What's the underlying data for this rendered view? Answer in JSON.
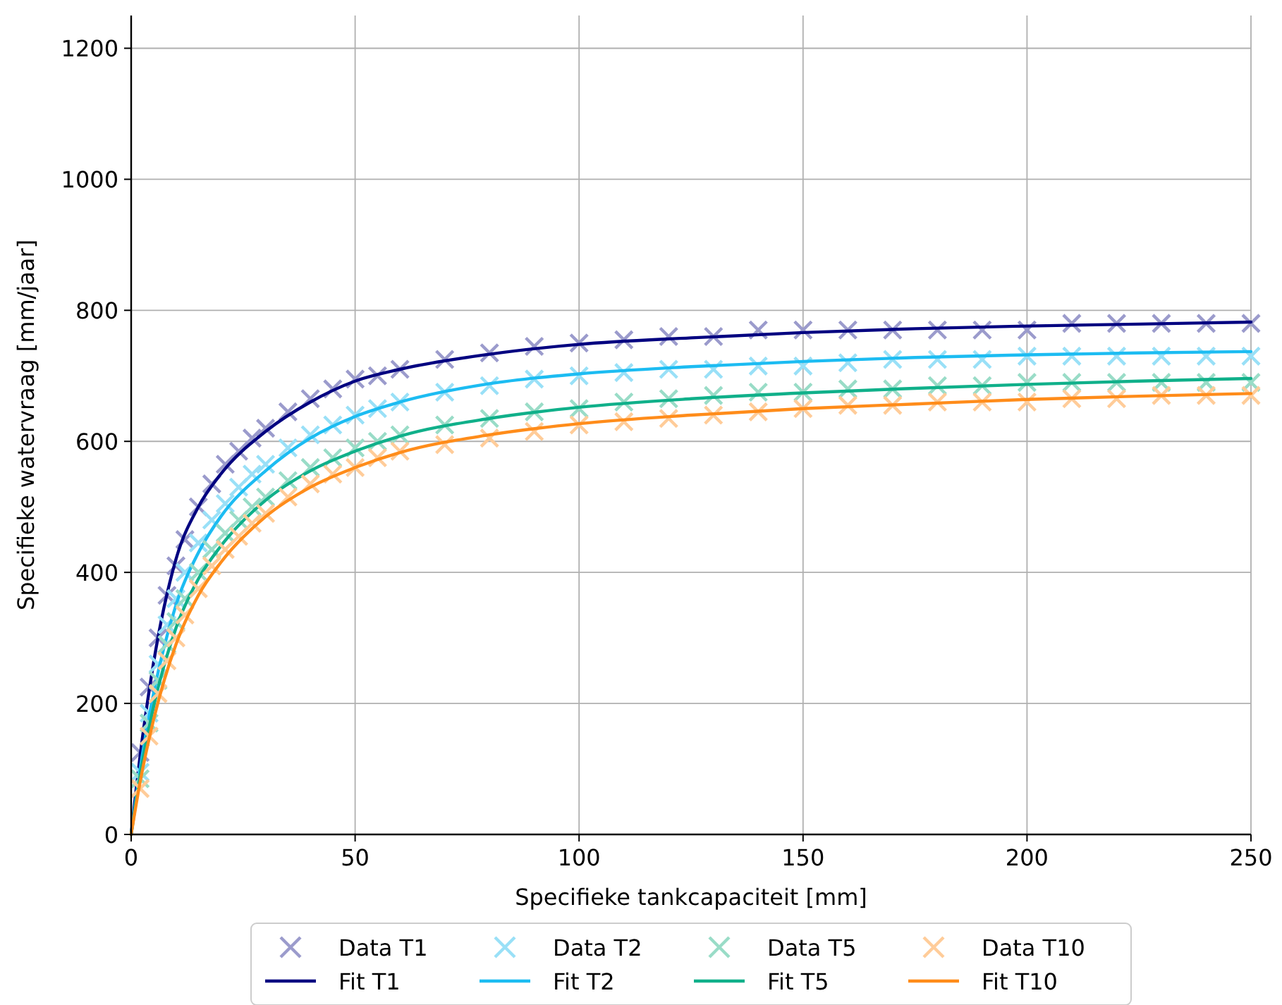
{
  "chart_data": {
    "type": "scatter",
    "xlabel": "Specifieke tankcapaciteit [mm]",
    "ylabel": "Specifieke watervraag [mm/jaar]",
    "xlim": [
      0,
      250
    ],
    "ylim": [
      0,
      1250
    ],
    "xticks": [
      0,
      50,
      100,
      150,
      200,
      250
    ],
    "yticks": [
      0,
      200,
      400,
      600,
      800,
      1000,
      1200
    ],
    "grid": true,
    "legend": "bottom",
    "series": [
      {
        "name": "Data T1",
        "type": "scatter",
        "marker": "cross",
        "color": "#9b9bcc",
        "x": [
          2,
          4,
          6,
          8,
          10,
          12,
          15,
          18,
          21,
          24,
          27,
          30,
          35,
          40,
          45,
          50,
          55,
          60,
          70,
          80,
          90,
          100,
          110,
          120,
          130,
          140,
          150,
          160,
          170,
          180,
          190,
          200,
          210,
          220,
          230,
          240,
          250
        ],
        "values": [
          125,
          225,
          300,
          365,
          410,
          450,
          500,
          535,
          565,
          585,
          605,
          620,
          645,
          665,
          680,
          695,
          700,
          710,
          725,
          735,
          745,
          750,
          755,
          760,
          760,
          770,
          770,
          770,
          770,
          770,
          770,
          770,
          780,
          780,
          780,
          780,
          780
        ]
      },
      {
        "name": "Fit T1",
        "type": "line",
        "marker": "none",
        "color": "#000080",
        "x": [
          0,
          2,
          5,
          10,
          15,
          20,
          30,
          40,
          50,
          60,
          80,
          100,
          125,
          150,
          175,
          200,
          225,
          250
        ],
        "values": [
          0,
          120,
          262,
          420,
          500,
          550,
          615,
          660,
          692,
          710,
          733,
          748,
          758,
          766,
          772,
          776,
          779,
          782
        ]
      },
      {
        "name": "Data T2",
        "type": "scatter",
        "marker": "cross",
        "color": "#99e0f7",
        "x": [
          2,
          4,
          6,
          8,
          10,
          12,
          15,
          18,
          21,
          24,
          27,
          30,
          35,
          40,
          45,
          50,
          55,
          60,
          70,
          80,
          90,
          100,
          110,
          120,
          130,
          140,
          150,
          160,
          170,
          180,
          190,
          200,
          210,
          220,
          230,
          240,
          250
        ],
        "values": [
          95,
          185,
          260,
          320,
          360,
          400,
          445,
          480,
          505,
          530,
          550,
          565,
          590,
          610,
          625,
          640,
          650,
          660,
          675,
          685,
          695,
          700,
          705,
          710,
          710,
          715,
          715,
          720,
          725,
          725,
          725,
          730,
          730,
          730,
          730,
          730,
          730
        ]
      },
      {
        "name": "Fit T2",
        "type": "line",
        "marker": "none",
        "color": "#1cbcf2",
        "x": [
          0,
          2,
          5,
          10,
          15,
          20,
          30,
          40,
          50,
          60,
          80,
          100,
          125,
          150,
          175,
          200,
          225,
          250
        ],
        "values": [
          0,
          100,
          215,
          350,
          430,
          485,
          555,
          605,
          638,
          660,
          688,
          703,
          714,
          722,
          728,
          732,
          735,
          737
        ]
      },
      {
        "name": "Data T5",
        "type": "scatter",
        "marker": "cross",
        "color": "#99dcc7",
        "x": [
          2,
          4,
          6,
          8,
          10,
          12,
          15,
          18,
          21,
          24,
          27,
          30,
          35,
          40,
          45,
          50,
          55,
          60,
          70,
          80,
          90,
          100,
          110,
          120,
          130,
          140,
          150,
          160,
          170,
          180,
          190,
          200,
          210,
          220,
          230,
          240,
          250
        ],
        "values": [
          85,
          170,
          235,
          290,
          325,
          360,
          400,
          435,
          460,
          480,
          500,
          515,
          540,
          560,
          575,
          590,
          600,
          610,
          625,
          635,
          645,
          650,
          660,
          665,
          670,
          675,
          675,
          680,
          680,
          685,
          685,
          690,
          690,
          690,
          690,
          690,
          690
        ]
      },
      {
        "name": "Fit T5",
        "type": "line",
        "marker": "none",
        "color": "#10b08a",
        "x": [
          0,
          2,
          5,
          10,
          15,
          20,
          30,
          40,
          50,
          60,
          80,
          100,
          125,
          150,
          175,
          200,
          225,
          250
        ],
        "values": [
          0,
          90,
          195,
          315,
          390,
          440,
          510,
          555,
          585,
          608,
          635,
          652,
          665,
          674,
          681,
          687,
          692,
          696
        ]
      },
      {
        "name": "Data T10",
        "type": "scatter",
        "marker": "cross",
        "color": "#ffcc99",
        "x": [
          2,
          4,
          6,
          8,
          10,
          12,
          15,
          18,
          21,
          24,
          27,
          30,
          35,
          40,
          45,
          50,
          55,
          60,
          70,
          80,
          90,
          100,
          110,
          120,
          130,
          140,
          150,
          160,
          170,
          180,
          190,
          200,
          210,
          220,
          230,
          240,
          250
        ],
        "values": [
          70,
          150,
          215,
          265,
          300,
          335,
          375,
          410,
          435,
          455,
          475,
          490,
          515,
          535,
          550,
          560,
          575,
          585,
          595,
          605,
          615,
          625,
          630,
          635,
          640,
          645,
          650,
          655,
          655,
          660,
          660,
          660,
          665,
          665,
          670,
          670,
          670
        ]
      },
      {
        "name": "Fit T10",
        "type": "line",
        "marker": "none",
        "color": "#ff8c1a",
        "x": [
          0,
          2,
          5,
          10,
          15,
          20,
          30,
          40,
          50,
          60,
          80,
          100,
          125,
          150,
          175,
          200,
          225,
          250
        ],
        "values": [
          0,
          80,
          175,
          290,
          365,
          415,
          485,
          530,
          560,
          583,
          610,
          627,
          640,
          650,
          657,
          664,
          669,
          673
        ]
      }
    ]
  }
}
